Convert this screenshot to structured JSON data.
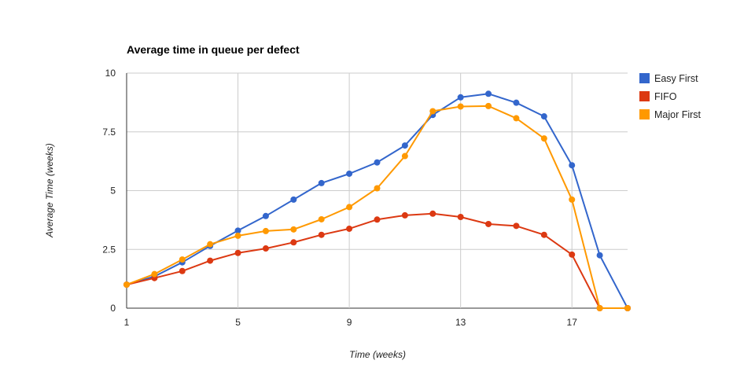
{
  "chart_data": {
    "type": "line",
    "title": "Average time in queue per defect",
    "xlabel": "Time (weeks)",
    "ylabel": "Average Time (weeks)",
    "xlim": [
      1,
      19
    ],
    "ylim": [
      0,
      10
    ],
    "x_ticks": [
      1,
      5,
      9,
      13,
      17
    ],
    "x_tick_labels": [
      "1",
      "5",
      "9",
      "13",
      "17"
    ],
    "y_ticks": [
      0,
      2.5,
      5,
      7.5,
      10
    ],
    "y_tick_labels": [
      "0",
      "2.5",
      "5",
      "7.5",
      "10"
    ],
    "grid": true,
    "legend_position": "right",
    "x": [
      1,
      2,
      3,
      4,
      5,
      6,
      7,
      8,
      9,
      10,
      11,
      12,
      13,
      14,
      15,
      16,
      17,
      18,
      19
    ],
    "series": [
      {
        "name": "Easy First",
        "color": "#3366cc",
        "values": [
          1.0,
          1.35,
          1.95,
          2.65,
          3.3,
          3.92,
          4.62,
          5.32,
          5.72,
          6.2,
          6.92,
          8.22,
          8.97,
          9.12,
          8.74,
          8.16,
          6.08,
          2.25,
          0.0
        ]
      },
      {
        "name": "FIFO",
        "color": "#dc3912",
        "values": [
          1.0,
          1.28,
          1.58,
          2.02,
          2.35,
          2.54,
          2.8,
          3.12,
          3.38,
          3.77,
          3.95,
          4.02,
          3.88,
          3.58,
          3.5,
          3.12,
          2.28,
          0.0,
          0.0
        ]
      },
      {
        "name": "Major First",
        "color": "#ff9900",
        "values": [
          1.0,
          1.45,
          2.07,
          2.72,
          3.08,
          3.28,
          3.35,
          3.78,
          4.3,
          5.1,
          6.47,
          8.38,
          8.58,
          8.6,
          8.08,
          7.22,
          4.62,
          0.0,
          0.0
        ]
      }
    ]
  }
}
